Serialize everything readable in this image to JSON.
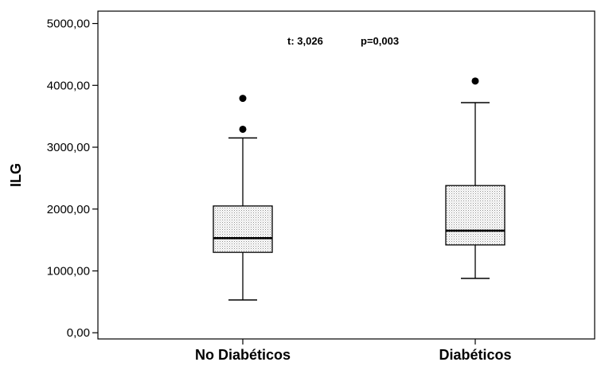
{
  "chart_data": {
    "type": "box",
    "ylabel": "ILG",
    "xlabel": "",
    "categories": [
      "No Diabéticos",
      "Diabéticos"
    ],
    "ylim": [
      -100,
      5200
    ],
    "yticks": [
      0,
      1000,
      2000,
      3000,
      4000,
      5000
    ],
    "ytick_labels": [
      "0,00",
      "1000,00",
      "2000,00",
      "3000,00",
      "4000,00",
      "5000,00"
    ],
    "annotations": [
      {
        "text": "t: 3,026"
      },
      {
        "text": "p=0,003"
      }
    ],
    "boxes": [
      {
        "name": "No Diabéticos",
        "whisker_low": 530,
        "q1": 1300,
        "median": 1530,
        "q3": 2050,
        "whisker_high": 3150,
        "outliers": [
          3290,
          3790
        ]
      },
      {
        "name": "Diabéticos",
        "whisker_low": 880,
        "q1": 1420,
        "median": 1650,
        "q3": 2380,
        "whisker_high": 3720,
        "outliers": [
          4070
        ]
      }
    ],
    "grid": false,
    "box_fill": "#ffffff",
    "box_pattern_color": "#9a9a9a",
    "line_color": "#000000"
  }
}
